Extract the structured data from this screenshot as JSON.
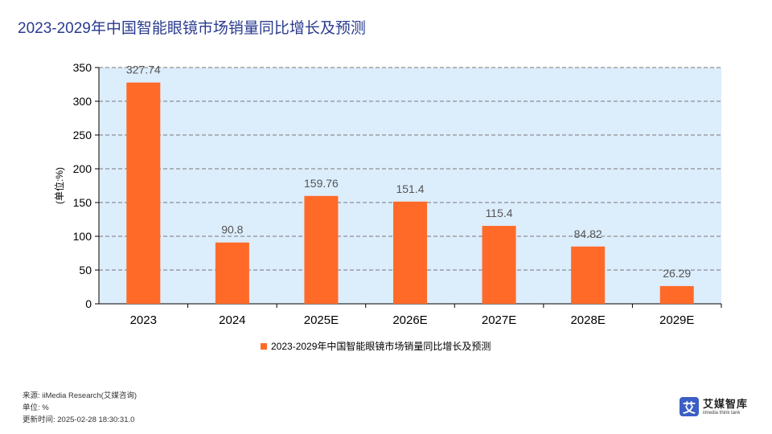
{
  "page": {
    "title": "2023-2029年中国智能眼镜市场销量同比增长及预测"
  },
  "chart_data": {
    "type": "bar",
    "categories": [
      "2023",
      "2024",
      "2025E",
      "2026E",
      "2027E",
      "2028E",
      "2029E"
    ],
    "series": [
      {
        "name": "2023-2029年中国智能眼镜市场销量同比增长及预测",
        "values": [
          327.74,
          90.8,
          159.76,
          151.4,
          115.4,
          84.82,
          26.29
        ],
        "labels": [
          "327.74",
          "90.8",
          "159.76",
          "151.4",
          "115.4",
          "84.82",
          "26.29"
        ]
      }
    ],
    "ylabel": "(单位:%)",
    "ylim": [
      0,
      350
    ],
    "yticks": [
      0,
      50,
      100,
      150,
      200,
      250,
      300,
      350
    ],
    "grid": true,
    "legend": "bottom-center",
    "colors": {
      "bar": "#ff6a28",
      "plot_bg": "#dcedfc",
      "grid": "#777777"
    }
  },
  "footer": {
    "source": "来源: iiMedia Research(艾媒咨询)",
    "unit": "单位: %",
    "updated": "更新时间: 2025-02-28 18:30:31.0"
  },
  "logo": {
    "mark": "艾",
    "name": "艾媒智库",
    "sub": "iimedia think tank"
  }
}
